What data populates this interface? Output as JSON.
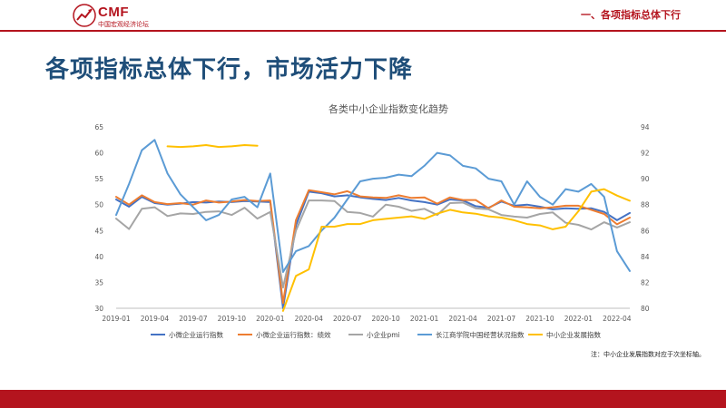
{
  "header": {
    "logo_text": "CMF",
    "logo_subtitle": "中国宏观经济论坛",
    "section": "一、各项指标总体下行"
  },
  "slide": {
    "title": "各项指标总体下行，市场活力下降",
    "note": "注：中小企业发展指数对应于次坐标轴。"
  },
  "colors": {
    "brand": "#b4141e",
    "title": "#1f4e79",
    "series": [
      "#4472c4",
      "#ed7d31",
      "#a5a5a5",
      "#5b9bd5",
      "#ffc000"
    ]
  },
  "chart_data": {
    "type": "line",
    "title": "各类中小企业指数变化趋势",
    "x": [
      "2019-01",
      "2019-02",
      "2019-03",
      "2019-04",
      "2019-05",
      "2019-06",
      "2019-07",
      "2019-08",
      "2019-09",
      "2019-10",
      "2019-11",
      "2019-12",
      "2020-01",
      "2020-02",
      "2020-03",
      "2020-04",
      "2020-05",
      "2020-06",
      "2020-07",
      "2020-08",
      "2020-09",
      "2020-10",
      "2020-11",
      "2020-12",
      "2021-01",
      "2021-02",
      "2021-03",
      "2021-04",
      "2021-05",
      "2021-06",
      "2021-07",
      "2021-08",
      "2021-09",
      "2021-10",
      "2021-11",
      "2021-12",
      "2022-01",
      "2022-02",
      "2022-03",
      "2022-04",
      "2022-05"
    ],
    "x_tick_labels": [
      "2019-01",
      "2019-04",
      "2019-07",
      "2019-10",
      "2020-01",
      "2020-04",
      "2020-07",
      "2020-10",
      "2021-01",
      "2021-04",
      "2021-07",
      "2021-10",
      "2022-01",
      "2022-04"
    ],
    "y_left": {
      "min": 30,
      "max": 65,
      "step": 5
    },
    "y_right": {
      "min": 80,
      "max": 94,
      "step": 2
    },
    "grid": false,
    "legend_position": "bottom",
    "series": [
      {
        "name": "小微企业运行指数",
        "axis": "left",
        "values": [
          51.0,
          49.6,
          51.5,
          50.3,
          50.0,
          50.2,
          50.5,
          50.4,
          50.6,
          50.5,
          50.7,
          50.6,
          50.5,
          30.0,
          46.0,
          52.5,
          52.2,
          51.6,
          51.8,
          51.4,
          51.1,
          50.9,
          51.3,
          50.8,
          50.5,
          50.0,
          51.0,
          50.8,
          49.7,
          49.4,
          50.6,
          49.8,
          50.0,
          49.6,
          49.1,
          49.3,
          49.2,
          49.3,
          48.6,
          47.0,
          48.4
        ]
      },
      {
        "name": "小微企业运行指数：绩效",
        "axis": "left",
        "values": [
          51.5,
          50.0,
          51.8,
          50.5,
          50.1,
          50.3,
          50.0,
          50.8,
          50.4,
          50.6,
          50.9,
          50.7,
          50.8,
          31.0,
          47.0,
          52.8,
          52.4,
          52.0,
          52.6,
          51.6,
          51.4,
          51.3,
          51.8,
          51.3,
          51.4,
          50.2,
          51.4,
          50.9,
          50.9,
          49.3,
          50.8,
          49.6,
          49.5,
          49.3,
          49.5,
          49.8,
          49.8,
          49.0,
          48.2,
          46.2,
          47.5
        ]
      },
      {
        "name": "小企业pmi",
        "axis": "left",
        "values": [
          47.3,
          45.3,
          49.2,
          49.5,
          47.8,
          48.3,
          48.2,
          48.6,
          48.7,
          48.0,
          49.4,
          47.3,
          48.6,
          34.0,
          45.0,
          50.8,
          50.8,
          50.7,
          48.6,
          48.4,
          47.7,
          50.0,
          49.6,
          48.8,
          49.2,
          48.0,
          50.3,
          50.4,
          49.3,
          49.1,
          48.0,
          47.7,
          47.5,
          48.2,
          48.5,
          46.5,
          46.1,
          45.2,
          46.6,
          45.6,
          46.6
        ]
      },
      {
        "name": "长江商学院中国经营状况指数",
        "axis": "left",
        "values": [
          48.0,
          54.0,
          60.5,
          62.5,
          56.0,
          52.0,
          49.5,
          47.0,
          48.0,
          51.0,
          51.5,
          49.5,
          56.0,
          37.0,
          41.0,
          42.0,
          45.0,
          47.5,
          51.0,
          54.5,
          55.0,
          55.2,
          55.8,
          55.5,
          57.5,
          60.0,
          59.5,
          57.5,
          57.0,
          55.0,
          54.5,
          50.0,
          54.5,
          51.5,
          50.0,
          53.0,
          52.5,
          54.0,
          51.5,
          41.0,
          37.2
        ]
      },
      {
        "name": "中小企业发展指数",
        "axis": "right",
        "values": [
          null,
          null,
          null,
          null,
          92.5,
          92.45,
          92.5,
          92.6,
          92.45,
          92.5,
          92.6,
          92.55,
          null,
          79.8,
          82.5,
          83.0,
          86.3,
          86.3,
          86.5,
          86.5,
          86.8,
          86.9,
          87.0,
          87.1,
          86.9,
          87.3,
          87.6,
          87.4,
          87.3,
          87.1,
          87.0,
          86.8,
          86.5,
          86.4,
          86.1,
          86.3,
          87.5,
          89.0,
          89.2,
          88.7,
          88.3
        ]
      }
    ]
  }
}
